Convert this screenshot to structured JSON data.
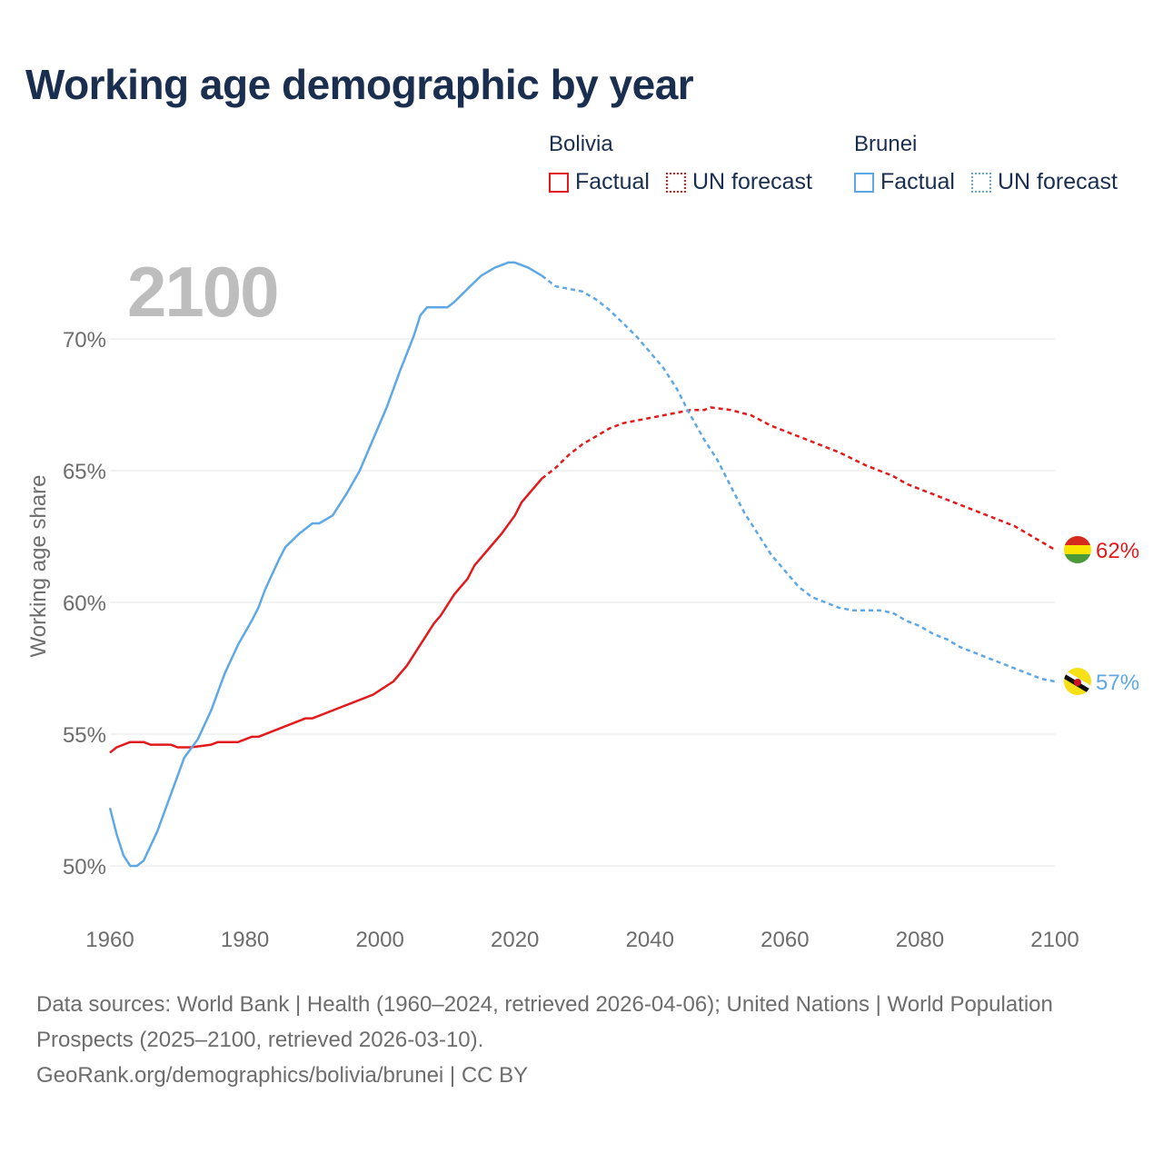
{
  "title": "Working age demographic by year",
  "year_display": "2100",
  "legend": {
    "groups": [
      {
        "country": "Bolivia",
        "color": "#e31a1c",
        "factual_label": "Factual",
        "forecast_label": "UN forecast"
      },
      {
        "country": "Brunei",
        "color": "#5fa8e6",
        "factual_label": "Factual",
        "forecast_label": "UN forecast"
      }
    ]
  },
  "chart_data": {
    "type": "line",
    "title": "Working age demographic by year",
    "xlabel": "",
    "ylabel": "Working age share",
    "xlim": [
      1960,
      2100
    ],
    "ylim": [
      48,
      73.5
    ],
    "x_ticks": [
      1960,
      1980,
      2000,
      2020,
      2040,
      2060,
      2080,
      2100
    ],
    "x_tick_labels": [
      "1960",
      "1980",
      "2000",
      "2020",
      "2040",
      "2060",
      "2080",
      "2100"
    ],
    "y_ticks": [
      50,
      55,
      60,
      65,
      70
    ],
    "y_tick_labels": [
      "50%",
      "55%",
      "60%",
      "65%",
      "70%"
    ],
    "forecast_start": 2024,
    "series": [
      {
        "name": "Bolivia",
        "color": "#e31a1c",
        "end_label": "62%",
        "flag": "bolivia-flag",
        "points": [
          [
            1960,
            54.3
          ],
          [
            1961,
            54.5
          ],
          [
            1963,
            54.7
          ],
          [
            1965,
            54.7
          ],
          [
            1966,
            54.6
          ],
          [
            1969,
            54.6
          ],
          [
            1970,
            54.5
          ],
          [
            1972,
            54.5
          ],
          [
            1975,
            54.6
          ],
          [
            1976,
            54.7
          ],
          [
            1979,
            54.7
          ],
          [
            1981,
            54.9
          ],
          [
            1982,
            54.9
          ],
          [
            1985,
            55.2
          ],
          [
            1989,
            55.6
          ],
          [
            1990,
            55.6
          ],
          [
            1994,
            56.0
          ],
          [
            1999,
            56.5
          ],
          [
            2002,
            57.0
          ],
          [
            2004,
            57.6
          ],
          [
            2006,
            58.4
          ],
          [
            2008,
            59.2
          ],
          [
            2009,
            59.5
          ],
          [
            2011,
            60.3
          ],
          [
            2013,
            60.9
          ],
          [
            2014,
            61.4
          ],
          [
            2016,
            62.0
          ],
          [
            2018,
            62.6
          ],
          [
            2020,
            63.3
          ],
          [
            2021,
            63.8
          ],
          [
            2024,
            64.7
          ],
          [
            2026,
            65.1
          ],
          [
            2028,
            65.6
          ],
          [
            2030,
            66.0
          ],
          [
            2032,
            66.3
          ],
          [
            2034,
            66.6
          ],
          [
            2036,
            66.8
          ],
          [
            2038,
            66.9
          ],
          [
            2040,
            67.0
          ],
          [
            2042,
            67.1
          ],
          [
            2044,
            67.2
          ],
          [
            2046,
            67.3
          ],
          [
            2048,
            67.3
          ],
          [
            2049,
            67.4
          ],
          [
            2052,
            67.3
          ],
          [
            2055,
            67.1
          ],
          [
            2058,
            66.7
          ],
          [
            2060,
            66.5
          ],
          [
            2064,
            66.1
          ],
          [
            2068,
            65.7
          ],
          [
            2072,
            65.2
          ],
          [
            2076,
            64.8
          ],
          [
            2078,
            64.5
          ],
          [
            2082,
            64.1
          ],
          [
            2086,
            63.7
          ],
          [
            2090,
            63.3
          ],
          [
            2094,
            62.9
          ],
          [
            2096,
            62.6
          ],
          [
            2098,
            62.3
          ],
          [
            2100,
            62.0
          ]
        ]
      },
      {
        "name": "Brunei",
        "color": "#5fa8e6",
        "end_label": "57%",
        "flag": "brunei-flag",
        "points": [
          [
            1960,
            52.2
          ],
          [
            1961,
            51.2
          ],
          [
            1962,
            50.4
          ],
          [
            1963,
            50.0
          ],
          [
            1964,
            50.0
          ],
          [
            1965,
            50.2
          ],
          [
            1967,
            51.3
          ],
          [
            1969,
            52.7
          ],
          [
            1971,
            54.1
          ],
          [
            1973,
            54.8
          ],
          [
            1975,
            55.9
          ],
          [
            1977,
            57.3
          ],
          [
            1979,
            58.4
          ],
          [
            1981,
            59.3
          ],
          [
            1982,
            59.8
          ],
          [
            1983,
            60.5
          ],
          [
            1985,
            61.6
          ],
          [
            1986,
            62.1
          ],
          [
            1988,
            62.6
          ],
          [
            1990,
            63.0
          ],
          [
            1991,
            63.0
          ],
          [
            1993,
            63.3
          ],
          [
            1995,
            64.1
          ],
          [
            1997,
            65.0
          ],
          [
            1999,
            66.2
          ],
          [
            2001,
            67.4
          ],
          [
            2003,
            68.8
          ],
          [
            2005,
            70.1
          ],
          [
            2006,
            70.9
          ],
          [
            2007,
            71.2
          ],
          [
            2010,
            71.2
          ],
          [
            2011,
            71.4
          ],
          [
            2013,
            71.9
          ],
          [
            2015,
            72.4
          ],
          [
            2017,
            72.7
          ],
          [
            2019,
            72.9
          ],
          [
            2020,
            72.9
          ],
          [
            2022,
            72.7
          ],
          [
            2024,
            72.4
          ],
          [
            2026,
            72.0
          ],
          [
            2028,
            71.9
          ],
          [
            2030,
            71.8
          ],
          [
            2032,
            71.5
          ],
          [
            2034,
            71.1
          ],
          [
            2036,
            70.6
          ],
          [
            2038,
            70.1
          ],
          [
            2040,
            69.5
          ],
          [
            2042,
            68.9
          ],
          [
            2044,
            68.1
          ],
          [
            2046,
            67.1
          ],
          [
            2048,
            66.2
          ],
          [
            2050,
            65.4
          ],
          [
            2052,
            64.4
          ],
          [
            2054,
            63.4
          ],
          [
            2056,
            62.6
          ],
          [
            2058,
            61.8
          ],
          [
            2060,
            61.2
          ],
          [
            2062,
            60.6
          ],
          [
            2064,
            60.2
          ],
          [
            2066,
            60.0
          ],
          [
            2068,
            59.8
          ],
          [
            2070,
            59.7
          ],
          [
            2074,
            59.7
          ],
          [
            2076,
            59.6
          ],
          [
            2078,
            59.3
          ],
          [
            2080,
            59.1
          ],
          [
            2082,
            58.8
          ],
          [
            2084,
            58.6
          ],
          [
            2086,
            58.3
          ],
          [
            2088,
            58.1
          ],
          [
            2090,
            57.9
          ],
          [
            2092,
            57.7
          ],
          [
            2094,
            57.5
          ],
          [
            2096,
            57.3
          ],
          [
            2098,
            57.1
          ],
          [
            2100,
            57.0
          ]
        ]
      }
    ]
  },
  "footer": {
    "line1": "Data sources: World Bank | Health (1960–2024, retrieved 2026-04-06); United Nations | World Population Prospects (2025–2100, retrieved 2026-03-10).",
    "line2": "GeoRank.org/demographics/bolivia/brunei | CC BY"
  }
}
